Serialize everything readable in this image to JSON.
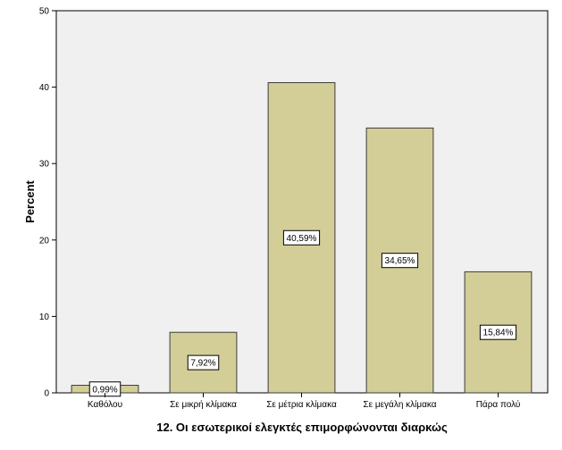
{
  "chart_data": {
    "type": "bar",
    "title": "",
    "xlabel": "12. Οι εσωτερικοί ελεγκτές επιμορφώνονται διαρκώς",
    "ylabel": "Percent",
    "categories": [
      "Καθόλου",
      "Σε μικρή κλίμακα",
      "Σε μέτρια κλίμακα",
      "Σε μεγάλη κλίμακα",
      "Πάρα πολύ"
    ],
    "values": [
      0.99,
      7.92,
      40.59,
      34.65,
      15.84
    ],
    "data_labels": [
      "0,99%",
      "7,92%",
      "40,59%",
      "34,65%",
      "15,84%"
    ],
    "ylim": [
      0,
      50
    ],
    "yticks": [
      0,
      10,
      20,
      30,
      40,
      50
    ],
    "ytick_labels": [
      "0",
      "10",
      "20",
      "30",
      "40",
      "50"
    ],
    "grid": false,
    "colors": {
      "plot_background": "#f0f0f0",
      "bar_fill": "#d3ce97",
      "bar_stroke": "#3c3c3c",
      "label_box_fill": "#ffffff"
    }
  }
}
